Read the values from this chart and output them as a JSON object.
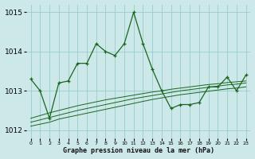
{
  "title": "Graphe pression niveau de la mer (hPa)",
  "background_color": "#cce8e8",
  "grid_color": "#99cccc",
  "line_color": "#1a6620",
  "hours": [
    0,
    1,
    2,
    3,
    4,
    5,
    6,
    7,
    8,
    9,
    10,
    11,
    12,
    13,
    14,
    15,
    16,
    17,
    18,
    19,
    20,
    21,
    22,
    23
  ],
  "main_series": [
    1013.3,
    1013.0,
    1012.3,
    1013.2,
    1013.25,
    1013.7,
    1013.7,
    1014.2,
    1014.0,
    1013.9,
    1014.2,
    1015.0,
    1014.2,
    1013.55,
    1013.0,
    1012.55,
    1012.65,
    1012.65,
    1012.7,
    1013.1,
    1013.1,
    1013.35,
    1013.0,
    1013.4
  ],
  "trend1": [
    1012.1,
    1012.15,
    1012.2,
    1012.28,
    1012.33,
    1012.38,
    1012.43,
    1012.48,
    1012.53,
    1012.58,
    1012.63,
    1012.68,
    1012.73,
    1012.78,
    1012.82,
    1012.86,
    1012.9,
    1012.93,
    1012.96,
    1012.99,
    1013.02,
    1013.05,
    1013.07,
    1013.1
  ],
  "trend2": [
    1012.2,
    1012.26,
    1012.32,
    1012.38,
    1012.44,
    1012.5,
    1012.55,
    1012.6,
    1012.65,
    1012.7,
    1012.75,
    1012.8,
    1012.84,
    1012.88,
    1012.92,
    1012.96,
    1013.0,
    1013.03,
    1013.06,
    1013.09,
    1013.12,
    1013.15,
    1013.17,
    1013.2
  ],
  "trend3": [
    1012.3,
    1012.37,
    1012.44,
    1012.5,
    1012.56,
    1012.62,
    1012.67,
    1012.72,
    1012.77,
    1012.81,
    1012.85,
    1012.89,
    1012.93,
    1012.97,
    1013.0,
    1013.04,
    1013.07,
    1013.1,
    1013.13,
    1013.16,
    1013.18,
    1013.21,
    1013.23,
    1013.25
  ],
  "ylim": [
    1011.8,
    1015.2
  ],
  "yticks": [
    1012,
    1013,
    1014,
    1015
  ],
  "xlim": [
    -0.5,
    23.5
  ]
}
